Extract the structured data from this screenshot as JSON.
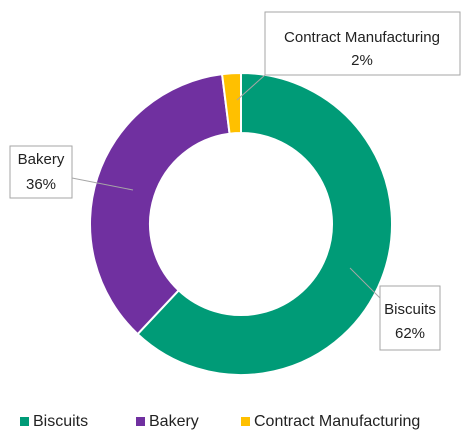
{
  "chart_data": {
    "type": "donut",
    "categories": [
      "Biscuits",
      "Bakery",
      "Contract Manufacturing"
    ],
    "values": [
      62,
      36,
      2
    ],
    "value_labels": [
      "62%",
      "36%",
      "2%"
    ],
    "colors": [
      "#009b77",
      "#7030a0",
      "#ffc000"
    ],
    "legend": "bottom"
  }
}
